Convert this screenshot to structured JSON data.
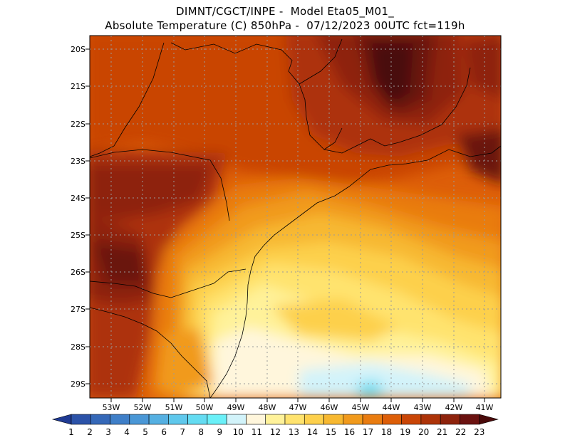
{
  "header": {
    "line1": "DIMNT/CGCT/INPE -  Model Eta05_M01_",
    "line2": "Absolute Temperature (C) 850hPa -  07/12/2023 00UTC fct=119h"
  },
  "map": {
    "lat_labels": [
      "20S",
      "21S",
      "22S",
      "23S",
      "24S",
      "25S",
      "26S",
      "27S",
      "28S",
      "29S"
    ],
    "lon_labels": [
      "53W",
      "52W",
      "51W",
      "50W",
      "49W",
      "48W",
      "47W",
      "46W",
      "45W",
      "44W",
      "43W",
      "42W",
      "41W"
    ],
    "lat_range": [
      -29.4,
      -19.9
    ],
    "lon_range": [
      -53.6,
      -40.5
    ]
  },
  "colorbar": {
    "labels": [
      "1",
      "2",
      "3",
      "4",
      "5",
      "6",
      "7",
      "8",
      "9",
      "10",
      "11",
      "12",
      "13",
      "14",
      "15",
      "16",
      "17",
      "18",
      "19",
      "20",
      "21",
      "22",
      "23"
    ],
    "colors": [
      "#1f3a93",
      "#2b52a8",
      "#3568b8",
      "#3f7fc8",
      "#4a97d6",
      "#55b0e2",
      "#5fc8ec",
      "#64dcf2",
      "#6af0f8",
      "#d2f3fa",
      "#fff6dc",
      "#fff29a",
      "#ffe36e",
      "#fdd04c",
      "#f7b830",
      "#f19a1c",
      "#e97c10",
      "#dd5e08",
      "#c94506",
      "#ad3308",
      "#8e230c",
      "#6b1210",
      "#4a0a0a"
    ]
  }
}
